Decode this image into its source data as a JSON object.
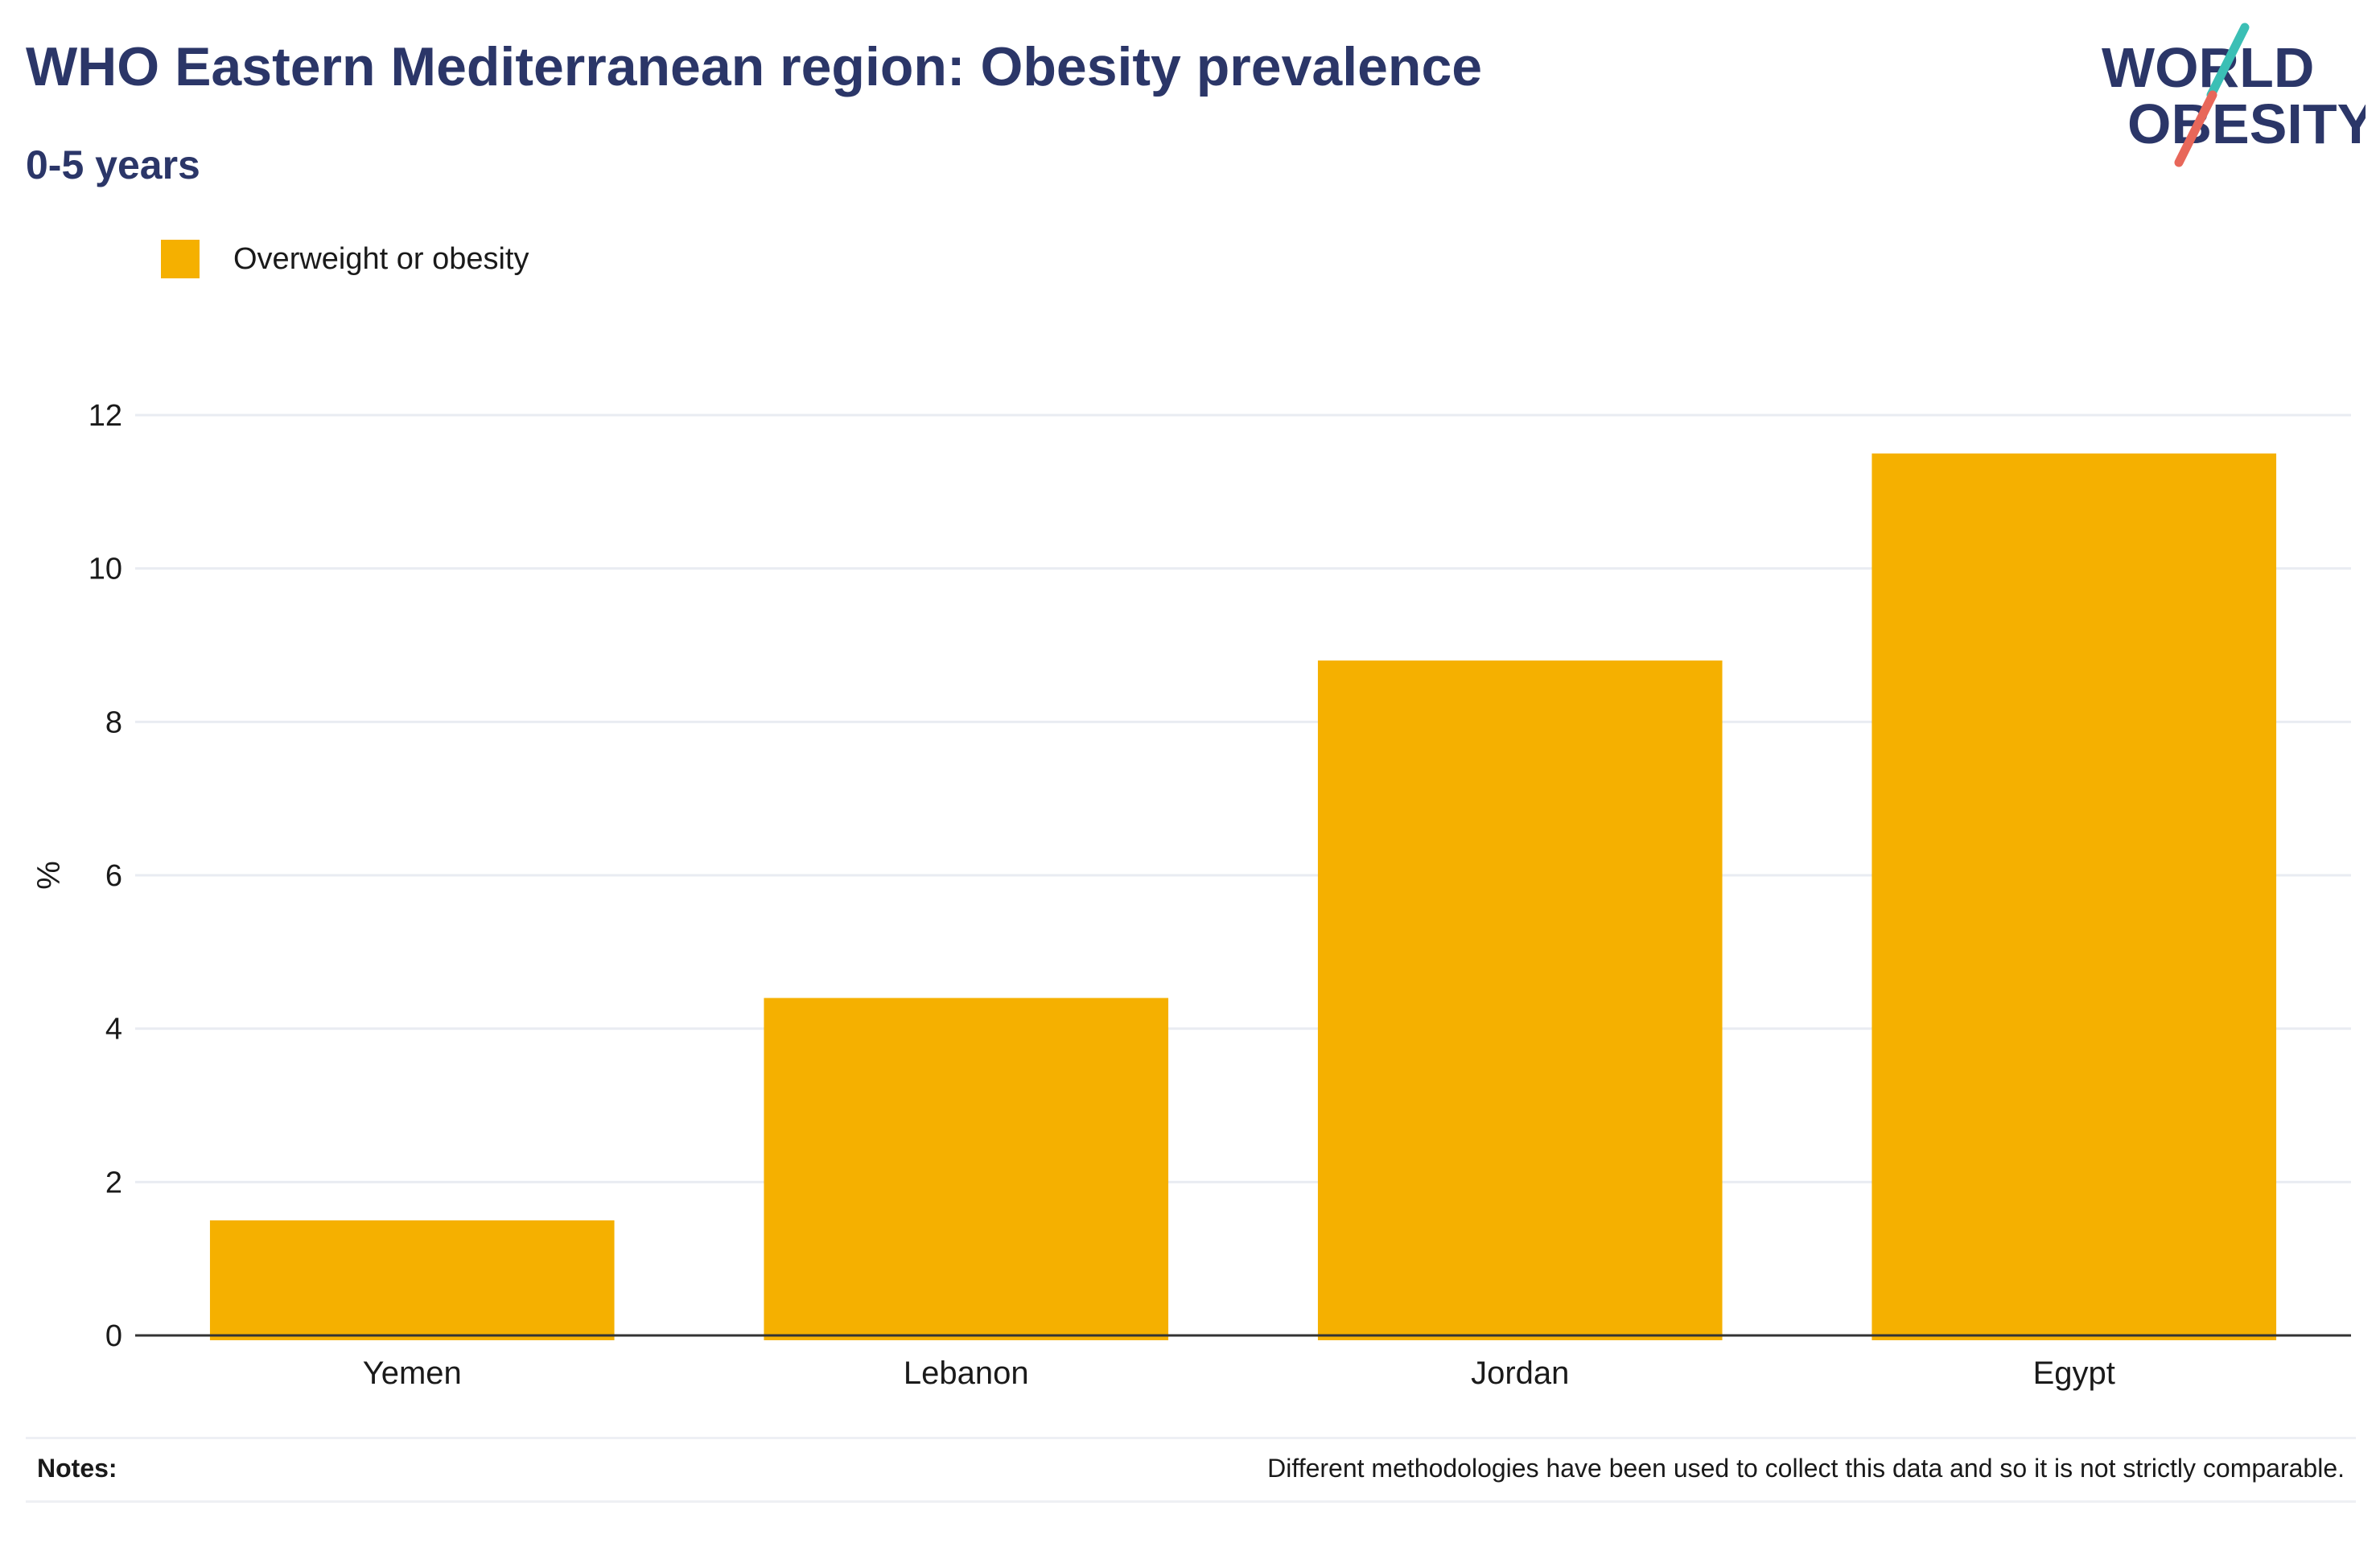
{
  "title": "WHO Eastern Mediterranean region: Obesity prevalence",
  "subtitle": "0-5 years",
  "logo": {
    "line1": "WORLD",
    "line2": "OBESITY",
    "text_color": "#2b3668",
    "slash_top_color": "#3bbfb5",
    "slash_bottom_color": "#e8675a"
  },
  "notes": {
    "label": "Notes:",
    "text": "Different methodologies have been used to collect this data and so it is not strictly comparable."
  },
  "chart_data": {
    "type": "bar",
    "categories": [
      "Yemen",
      "Lebanon",
      "Jordan",
      "Egypt"
    ],
    "series": [
      {
        "name": "Overweight or obesity",
        "color": "#f5b000",
        "values": [
          1.5,
          4.4,
          8.8,
          11.5
        ]
      }
    ],
    "title": "WHO Eastern Mediterranean region: Obesity prevalence",
    "subtitle": "0-5 years",
    "xlabel": "",
    "ylabel": "%",
    "ylim": [
      0,
      12
    ],
    "yticks": [
      0,
      2,
      4,
      6,
      8,
      10,
      12
    ],
    "grid": true,
    "legend": "top-left"
  }
}
